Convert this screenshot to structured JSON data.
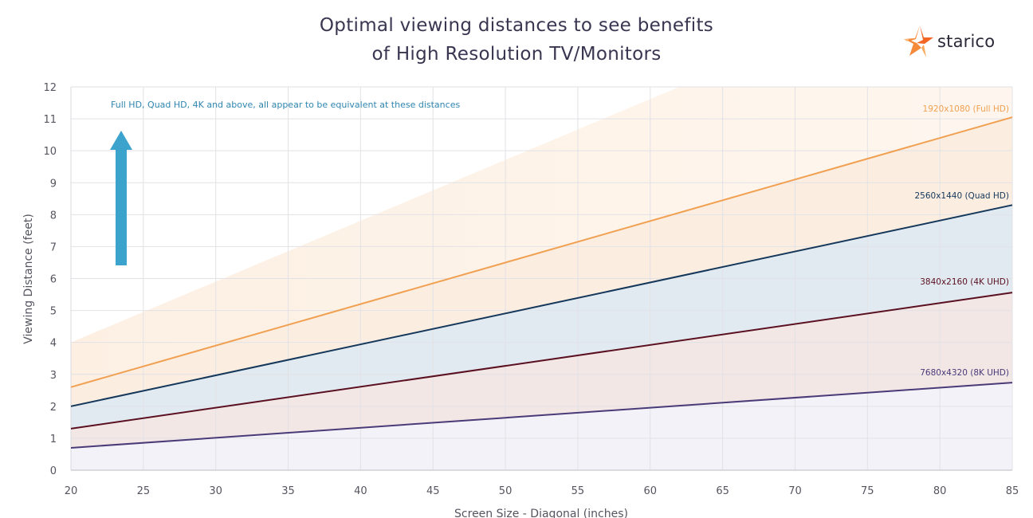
{
  "title_line1": "Optimal viewing distances to see benefits",
  "title_line2": "of High Resolution TV/Monitors",
  "logo": {
    "text": "starico",
    "icon": "star-icon",
    "color": "#f26522"
  },
  "chart_data": {
    "type": "line",
    "title": "Optimal viewing distances to see benefits of High Resolution TV/Monitors",
    "xlabel": "Screen Size - Diagonal (inches)",
    "ylabel": "Viewing Distance (feet)",
    "xlim": [
      20,
      85
    ],
    "ylim": [
      0,
      12
    ],
    "xticks": [
      20,
      25,
      30,
      35,
      40,
      45,
      50,
      55,
      60,
      65,
      70,
      75,
      80,
      85
    ],
    "yticks": [
      0,
      1,
      2,
      3,
      4,
      5,
      6,
      7,
      8,
      9,
      10,
      11,
      12
    ],
    "grid": true,
    "annotation": "Full HD, Quad HD, 4K and above, all appear to be equivalent at these distances",
    "annotation_arrow": {
      "direction": "up",
      "color": "#3ba3cc"
    },
    "upper_band": {
      "color": "#fbe3cc",
      "x": [
        20,
        85
      ],
      "y": [
        4.0,
        12
      ]
    },
    "x": [
      20,
      85
    ],
    "series": [
      {
        "name": "1920x1080 (Full HD)",
        "values": [
          2.6,
          11.05
        ],
        "color": "#f0a050",
        "fill": "#fbeadc"
      },
      {
        "name": "2560x1440 (Quad HD)",
        "values": [
          2.0,
          8.3
        ],
        "color": "#14375a",
        "fill": "#dde6ef"
      },
      {
        "name": "3840x2160 (4K UHD)",
        "values": [
          1.3,
          5.56
        ],
        "color": "#5a1020",
        "fill": "#f0e3e0"
      },
      {
        "name": "7680x4320 (8K UHD)",
        "values": [
          0.7,
          2.74
        ],
        "color": "#4a3a78",
        "fill": "#e9e8f3"
      }
    ]
  }
}
